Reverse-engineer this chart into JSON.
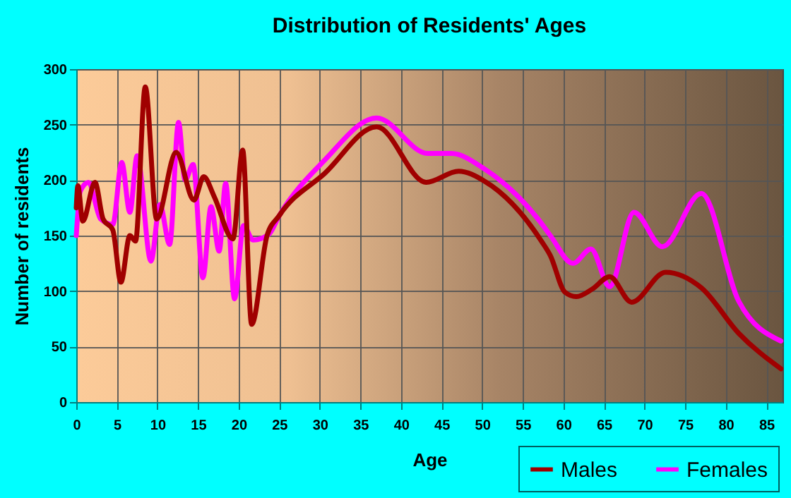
{
  "chart_data": {
    "type": "line",
    "title": "Distribution of Residents' Ages",
    "xlabel": "Age",
    "ylabel": "Number of residents",
    "xlim": [
      0,
      87
    ],
    "xticks": [
      0,
      5,
      10,
      15,
      20,
      25,
      30,
      35,
      40,
      45,
      50,
      55,
      60,
      65,
      70,
      75,
      80,
      85
    ],
    "ylim": [
      0,
      300
    ],
    "yticks": [
      0,
      50,
      100,
      150,
      200,
      250,
      300
    ],
    "grid": true,
    "legend": "bottom right",
    "marker": "none",
    "line_style": "solid",
    "series": [
      {
        "name": "Males",
        "color": "#a00000",
        "x": [
          0,
          0.2,
          0.8,
          2.3,
          3.3,
          4.5,
          5.5,
          6.6,
          7.3,
          8.5,
          9.9,
          12.3,
          14.5,
          15.7,
          17,
          19.3,
          20.5,
          21.6,
          23.5,
          25,
          30.6,
          37,
          43.1,
          47.1,
          50.3,
          57.3,
          58.4,
          60.2,
          61.6,
          63.6,
          65.7,
          68.4,
          72.6,
          77,
          81.6,
          86.8
        ],
        "values": [
          175,
          195,
          163,
          198,
          165,
          155,
          108,
          150,
          145,
          284,
          165,
          225,
          182,
          203,
          185,
          147,
          227,
          70,
          150,
          168,
          206,
          248,
          198,
          208,
          199,
          145,
          132,
          99,
          95,
          102,
          113,
          90,
          117,
          103,
          62,
          30
        ]
      },
      {
        "name": "Females",
        "color": "#ff00ff",
        "x": [
          0,
          0.5,
          1.5,
          3,
          4.5,
          5.6,
          6.6,
          7.5,
          9.2,
          10.3,
          11.5,
          12.6,
          13.4,
          14.4,
          15.6,
          16.6,
          17.6,
          18.4,
          19.5,
          20.6,
          21.8,
          23.7,
          25,
          30.6,
          37,
          43.3,
          46.2,
          50.3,
          57.3,
          58.4,
          61.2,
          63.4,
          65.7,
          68.7,
          72.2,
          77,
          81.6,
          86.8
        ],
        "values": [
          150,
          190,
          198,
          165,
          160,
          216,
          171,
          222,
          127,
          178,
          142,
          252,
          200,
          214,
          112,
          176,
          136,
          197,
          93,
          159,
          146,
          151,
          168,
          218,
          256,
          224,
          224,
          210,
          161,
          150,
          125,
          138,
          104,
          171,
          140,
          188,
          91,
          55
        ]
      }
    ]
  }
}
